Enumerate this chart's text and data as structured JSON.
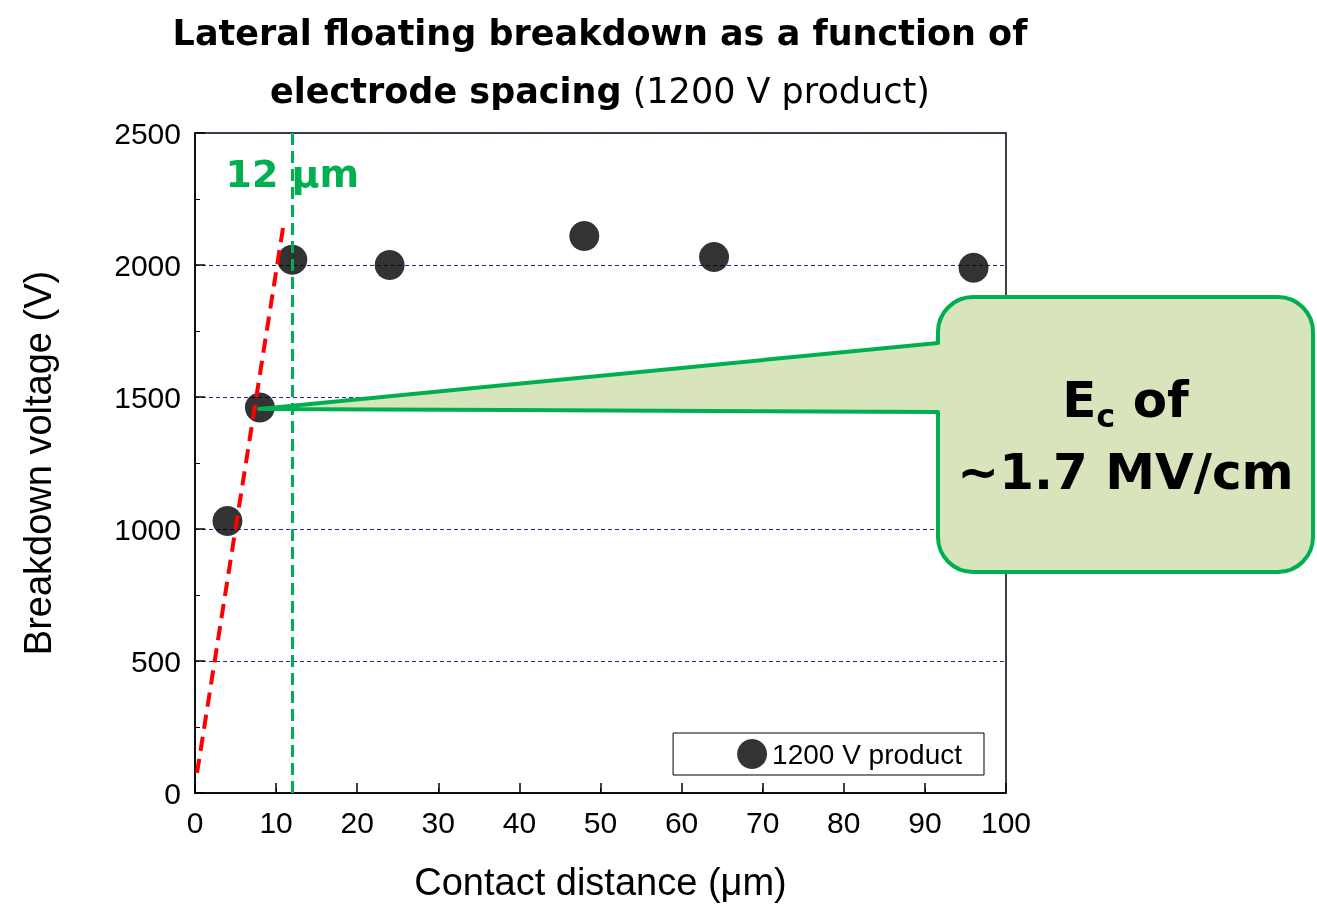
{
  "chart_data": {
    "type": "scatter",
    "title": "Lateral floating breakdown as a function of electrode spacing",
    "subtitle": "(1200 V product)",
    "xlabel": "Contact distance (μm)",
    "ylabel": "Breakdown voltage (V)",
    "xlim": [
      0,
      100
    ],
    "xticks": [
      0,
      10,
      20,
      30,
      40,
      50,
      60,
      70,
      80,
      90,
      100
    ],
    "ylim": [
      0,
      2500
    ],
    "yticks": [
      0,
      500,
      1000,
      1500,
      2000,
      2500
    ],
    "grid": "y",
    "legend": "bottom right",
    "series": [
      {
        "type": "scatter",
        "name": "1200 V product",
        "marker": "circle",
        "color": "#000000",
        "x": [
          4,
          8,
          12,
          24,
          48,
          64,
          96
        ],
        "values": [
          1030,
          1460,
          2020,
          2000,
          2110,
          2030,
          1990
        ]
      },
      {
        "type": "line",
        "color": "#ff0000",
        "line_style": "dashed",
        "x": [
          0.25,
          10.85
        ],
        "values": [
          76,
          2140
        ]
      }
    ],
    "ref_lines": [
      {
        "axis": "x",
        "value": 12,
        "label": "12 μm",
        "color": "#00b050",
        "line_style": "dashed"
      }
    ],
    "annotations": [
      "E$_{c}$ of ~1.7 MV/cm"
    ]
  }
}
